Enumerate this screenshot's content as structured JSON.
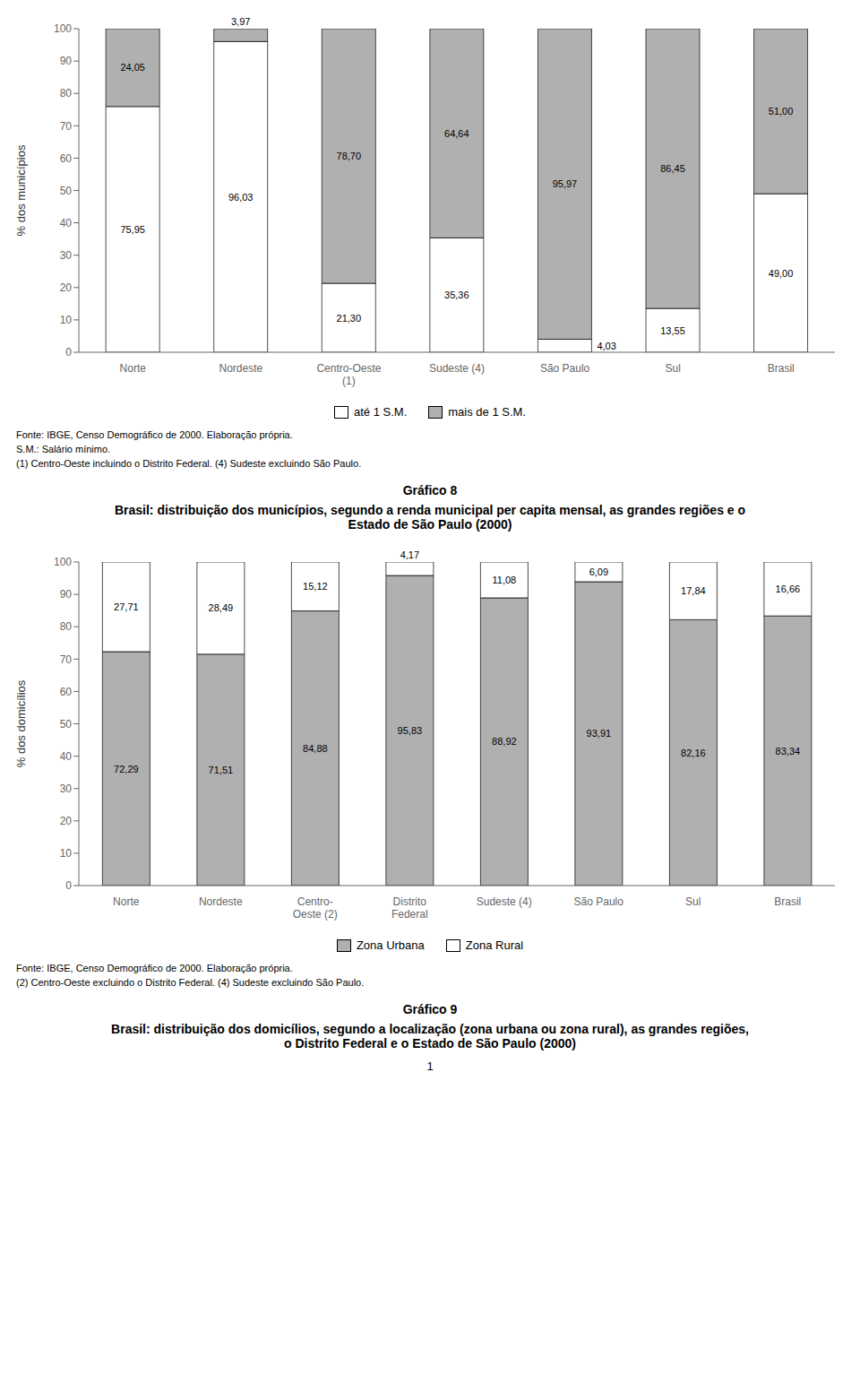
{
  "chart_data": [
    {
      "type": "bar",
      "title": "Gráfico 8",
      "subtitle": "Brasil: distribuição dos municípios, segundo a renda municipal per capita mensal, as grandes regiões e o\nEstado de São Paulo (2000)",
      "ylabel": "% dos municípios",
      "categories": [
        "Norte",
        "Nordeste",
        "Centro-Oeste\n(1)",
        "Sudeste (4)",
        "São Paulo",
        "Sul",
        "Brasil"
      ],
      "series": [
        {
          "name": "até 1 S.M.",
          "color": "#ffffff",
          "values": [
            75.95,
            96.03,
            21.3,
            35.36,
            4.03,
            13.55,
            49.0
          ],
          "value_labels": [
            "75,95",
            "96,03",
            "21,30",
            "35,36",
            "4,03",
            "13,55",
            "49,00"
          ]
        },
        {
          "name": "mais de 1 S.M.",
          "color": "#b0b0b0",
          "values": [
            24.05,
            3.97,
            78.7,
            64.64,
            95.97,
            86.45,
            51.0
          ],
          "value_labels": [
            "24,05",
            "3,97",
            "78,70",
            "64,64",
            "95,97",
            "86,45",
            "51,00"
          ]
        }
      ],
      "ylim": [
        0,
        100
      ],
      "yticks": [
        0,
        10,
        20,
        30,
        40,
        50,
        60,
        70,
        80,
        90,
        100
      ],
      "stacked": true,
      "data_labels": true,
      "grid": false,
      "legend": "bottom",
      "annotations": [
        "Fonte: IBGE, Censo Demográfico de 2000. Elaboração própria.",
        "S.M.: Salário mínimo.",
        "(1) Centro-Oeste incluindo o Distrito Federal. (4) Sudeste excluindo São Paulo."
      ]
    },
    {
      "type": "bar",
      "title": "Gráfico 9",
      "subtitle": "Brasil: distribuição dos domicílios, segundo a localização (zona urbana ou zona rural), as grandes regiões,\no Distrito Federal e o Estado de São Paulo (2000)",
      "ylabel": "% dos domicílios",
      "categories": [
        "Norte",
        "Nordeste",
        "Centro-\nOeste (2)",
        "Distrito\nFederal",
        "Sudeste (4)",
        "São Paulo",
        "Sul",
        "Brasil"
      ],
      "series": [
        {
          "name": "Zona Urbana",
          "color": "#b0b0b0",
          "values": [
            72.29,
            71.51,
            84.88,
            95.83,
            88.92,
            93.91,
            82.16,
            83.34
          ],
          "value_labels": [
            "72,29",
            "71,51",
            "84,88",
            "95,83",
            "88,92",
            "93,91",
            "82,16",
            "83,34"
          ]
        },
        {
          "name": "Zona Rural",
          "color": "#ffffff",
          "values": [
            27.71,
            28.49,
            15.12,
            4.17,
            11.08,
            6.09,
            17.84,
            16.66
          ],
          "value_labels": [
            "27,71",
            "28,49",
            "15,12",
            "4,17",
            "11,08",
            "6,09",
            "17,84",
            "16,66"
          ]
        }
      ],
      "ylim": [
        0,
        100
      ],
      "yticks": [
        0,
        10,
        20,
        30,
        40,
        50,
        60,
        70,
        80,
        90,
        100
      ],
      "stacked": true,
      "data_labels": true,
      "grid": false,
      "legend": "bottom",
      "annotations": [
        "Fonte: IBGE, Censo Demográfico de 2000. Elaboração própria.",
        "(2) Centro-Oeste excluindo o Distrito Federal. (4) Sudeste excluindo São Paulo."
      ]
    }
  ],
  "annotations": [
    "1"
  ]
}
